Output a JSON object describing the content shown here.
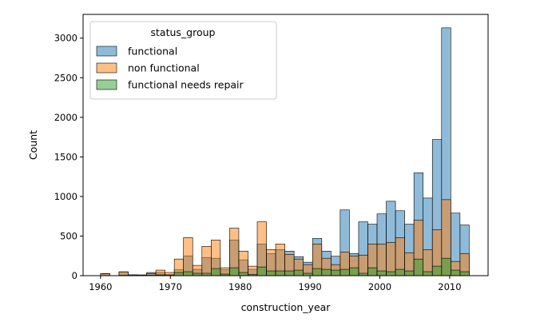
{
  "chart_data": {
    "type": "histogram",
    "xlabel": "construction_year",
    "ylabel": "Count",
    "xlim": [
      1957.5,
      2015.5
    ],
    "ylim": [
      0,
      3300
    ],
    "xticks": [
      1960,
      1970,
      1980,
      1990,
      2000,
      2010
    ],
    "yticks": [
      0,
      500,
      1000,
      1500,
      2000,
      2500,
      3000
    ],
    "grid": false,
    "bin_width": 1.32,
    "bins_start": [
      1960.0,
      1961.32,
      1962.64,
      1963.96,
      1965.28,
      1966.6,
      1967.92,
      1969.24,
      1970.56,
      1971.88,
      1973.2,
      1974.52,
      1975.84,
      1977.16,
      1978.48,
      1979.8,
      1981.12,
      1982.44,
      1983.76,
      1985.08,
      1986.4,
      1987.72,
      1989.04,
      1990.36,
      1991.68,
      1993.0,
      1994.32,
      1995.64,
      1996.96,
      1998.28,
      1999.6,
      2000.92,
      2002.24,
      2003.56,
      2004.88,
      2006.2,
      2007.52,
      2008.84,
      2010.16,
      2011.48
    ],
    "legend": {
      "title": "status_group",
      "placement": "top-left"
    },
    "series": [
      {
        "name": "functional",
        "color": "#1f77b4",
        "values": [
          22,
          0,
          45,
          10,
          10,
          40,
          40,
          15,
          75,
          250,
          80,
          230,
          220,
          75,
          450,
          200,
          80,
          400,
          280,
          330,
          310,
          240,
          170,
          470,
          310,
          245,
          830,
          280,
          680,
          650,
          780,
          940,
          820,
          650,
          1300,
          980,
          1720,
          3130,
          790,
          640
        ]
      },
      {
        "name": "non functional",
        "color": "#ff7f0e",
        "values": [
          28,
          0,
          50,
          10,
          5,
          25,
          70,
          40,
          210,
          480,
          130,
          370,
          450,
          100,
          600,
          310,
          120,
          680,
          330,
          400,
          270,
          210,
          140,
          400,
          220,
          140,
          300,
          250,
          260,
          400,
          400,
          420,
          480,
          290,
          700,
          330,
          580,
          960,
          180,
          280
        ]
      },
      {
        "name": "functional needs repair",
        "color": "#2ca02c",
        "values": [
          2,
          0,
          5,
          2,
          2,
          5,
          10,
          5,
          40,
          50,
          30,
          30,
          90,
          20,
          100,
          40,
          15,
          110,
          60,
          60,
          60,
          70,
          30,
          90,
          80,
          70,
          80,
          100,
          30,
          100,
          60,
          50,
          80,
          60,
          210,
          50,
          120,
          220,
          70,
          50
        ]
      }
    ]
  }
}
